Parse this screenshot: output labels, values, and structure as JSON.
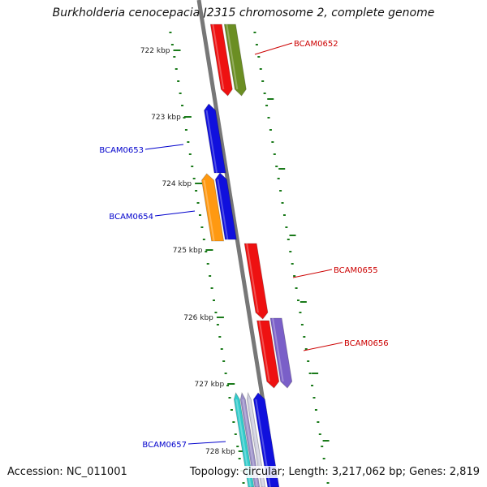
{
  "title": "Burkholderia cenocepacia J2315 chromosome 2, complete genome",
  "accession": "Accession: NC_011001",
  "summary": "Topology: circular; Length: 3,217,062 bp; Genes: 2,819",
  "colors": {
    "backbone": "#777777",
    "tick": "#1a7a1a",
    "forward_label": "#cc0000",
    "reverse_label": "#0000cc"
  },
  "ruler": [
    {
      "label": "722 kbp"
    },
    {
      "label": "723 kbp"
    },
    {
      "label": "724 kbp"
    },
    {
      "label": "725 kbp"
    },
    {
      "label": "726 kbp"
    },
    {
      "label": "727 kbp"
    },
    {
      "label": "728 kbp"
    }
  ],
  "gene_labels": [
    {
      "name": "BCAM0652",
      "strand": "forward"
    },
    {
      "name": "BCAM0653",
      "strand": "reverse"
    },
    {
      "name": "BCAM0654",
      "strand": "reverse"
    },
    {
      "name": "BCAM0655",
      "strand": "forward"
    },
    {
      "name": "BCAM0656",
      "strand": "forward"
    },
    {
      "name": "BCAM0657",
      "strand": "reverse"
    }
  ],
  "feature_colors": [
    {
      "name": "red-forward-gene",
      "color": "#ee1111"
    },
    {
      "name": "olive-forward-gene",
      "color": "#6b8e23"
    },
    {
      "name": "blue-reverse-gene",
      "color": "#1010dd"
    },
    {
      "name": "orange-reverse-gene",
      "color": "#ff9911"
    },
    {
      "name": "purple-forward-gene",
      "color": "#7a5fc8"
    },
    {
      "name": "cyan-reverse-gene",
      "color": "#33cccc"
    },
    {
      "name": "lavender-reverse-gene",
      "color": "#9a8fc8"
    }
  ]
}
